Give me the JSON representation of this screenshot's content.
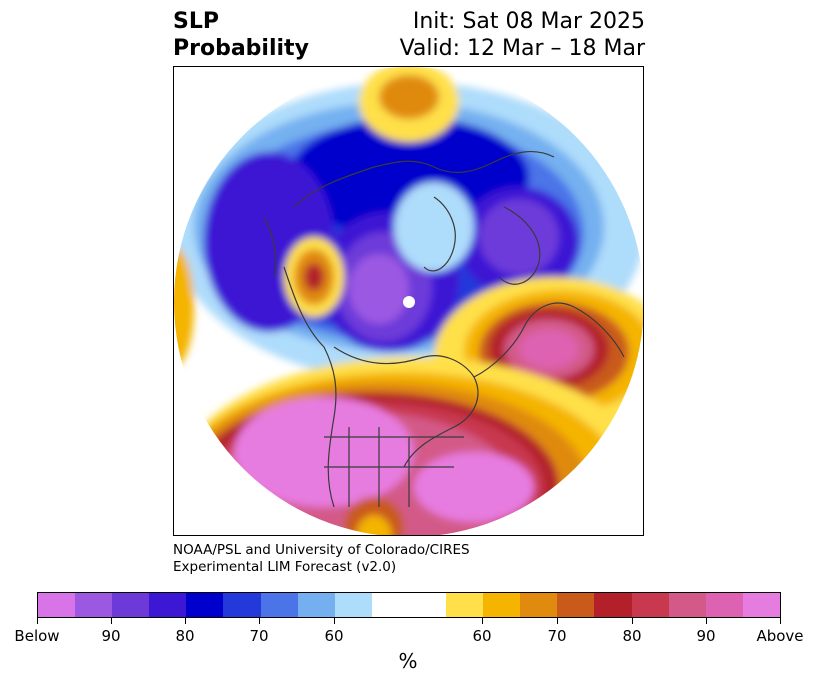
{
  "title": {
    "left": [
      "SLP",
      "Probability"
    ],
    "right": [
      "Init: Sat 08 Mar 2025",
      "Valid: 12 Mar – 18 Mar"
    ]
  },
  "credit": [
    "NOAA/PSL and University of Colorado/CIRES",
    "Experimental LIM Forecast (v2.0)"
  ],
  "colorbar": {
    "colors": [
      "#d973e8",
      "#9b59e2",
      "#6d3ad9",
      "#3c18d4",
      "#0000cc",
      "#2339da",
      "#4b74e8",
      "#74b0f0",
      "#aedcfb",
      "#ffffff",
      "#ffe04a",
      "#f4b400",
      "#e08a10",
      "#c95a1a",
      "#b3202a",
      "#c8384f",
      "#d35a88",
      "#dd62b1",
      "#e77ce0"
    ],
    "tick_labels": [
      "Below",
      "90",
      "80",
      "70",
      "60",
      "60",
      "70",
      "80",
      "90",
      "Above"
    ],
    "unit": "%"
  }
}
